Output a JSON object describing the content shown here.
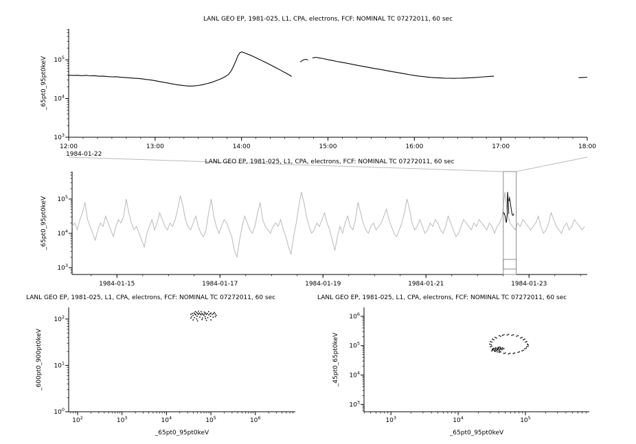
{
  "app": {
    "background": "#ffffff",
    "text_color": "#000000"
  },
  "overview_link": {
    "color": "#b9b9b9",
    "selection_color": "#8c8c8c"
  },
  "chart_data": [
    {
      "id": "zoom-timeseries",
      "type": "line",
      "title": "LANL GEO EP, 1981-025, L1, CPA, electrons, FCF: NOMINAL TC 07272011, 60 sec",
      "ylabel": "_65pt0_95pt0keV",
      "context_date_label": "1984-01-22",
      "x_range_hours": [
        12,
        18
      ],
      "x_tick_hours": [
        12,
        13,
        14,
        15,
        16,
        17,
        18
      ],
      "x_tick_labels": [
        "12:00",
        "13:00",
        "14:00",
        "15:00",
        "16:00",
        "17:00",
        "18:00"
      ],
      "y_scale": "log",
      "y_tick_exponents": [
        3,
        4,
        5
      ],
      "y_range_log10": [
        3,
        5.8
      ],
      "line_color": "#000000",
      "segments": [
        [
          [
            12.0,
            40000
          ],
          [
            12.05,
            39500
          ],
          [
            12.1,
            39800
          ],
          [
            12.15,
            38900
          ],
          [
            12.2,
            39600
          ],
          [
            12.25,
            38500
          ],
          [
            12.3,
            38800
          ],
          [
            12.35,
            37600
          ],
          [
            12.4,
            37900
          ],
          [
            12.45,
            36800
          ],
          [
            12.5,
            36300
          ],
          [
            12.55,
            36600
          ],
          [
            12.6,
            35400
          ],
          [
            12.65,
            35000
          ],
          [
            12.7,
            34200
          ],
          [
            12.75,
            33600
          ],
          [
            12.8,
            33000
          ],
          [
            12.85,
            32200
          ],
          [
            12.9,
            31000
          ],
          [
            12.95,
            30000
          ],
          [
            13.0,
            28800
          ],
          [
            13.05,
            27500
          ],
          [
            13.1,
            26300
          ],
          [
            13.15,
            25000
          ],
          [
            13.2,
            23800
          ],
          [
            13.25,
            22800
          ],
          [
            13.3,
            22000
          ],
          [
            13.35,
            21400
          ],
          [
            13.4,
            21000
          ],
          [
            13.45,
            21200
          ],
          [
            13.5,
            21800
          ],
          [
            13.55,
            22800
          ],
          [
            13.6,
            24200
          ],
          [
            13.65,
            26000
          ],
          [
            13.7,
            28500
          ],
          [
            13.75,
            31500
          ],
          [
            13.8,
            35500
          ],
          [
            13.85,
            42000
          ],
          [
            13.88,
            52000
          ],
          [
            13.91,
            70000
          ],
          [
            13.94,
            100000
          ],
          [
            13.96,
            130000
          ],
          [
            13.98,
            152000
          ],
          [
            14.0,
            160000
          ],
          [
            14.02,
            155000
          ],
          [
            14.05,
            146000
          ],
          [
            14.1,
            132000
          ],
          [
            14.15,
            118000
          ],
          [
            14.2,
            104000
          ],
          [
            14.25,
            92000
          ],
          [
            14.3,
            81000
          ],
          [
            14.35,
            71000
          ],
          [
            14.4,
            62000
          ],
          [
            14.45,
            54000
          ],
          [
            14.5,
            47000
          ],
          [
            14.55,
            41000
          ],
          [
            14.58,
            37000
          ]
        ],
        [
          [
            14.68,
            88000
          ],
          [
            14.71,
            98000
          ],
          [
            14.74,
            103000
          ],
          [
            14.77,
            99000
          ]
        ],
        [
          [
            14.82,
            112000
          ],
          [
            14.86,
            116000
          ],
          [
            14.9,
            112000
          ],
          [
            14.95,
            107000
          ],
          [
            15.0,
            101000
          ],
          [
            15.05,
            96000
          ],
          [
            15.1,
            91000
          ],
          [
            15.15,
            87000
          ],
          [
            15.2,
            83000
          ],
          [
            15.25,
            79000
          ],
          [
            15.3,
            75000
          ],
          [
            15.35,
            71500
          ],
          [
            15.4,
            68000
          ],
          [
            15.45,
            65000
          ],
          [
            15.5,
            62000
          ],
          [
            15.55,
            59000
          ],
          [
            15.6,
            56500
          ],
          [
            15.65,
            54000
          ],
          [
            15.7,
            51500
          ],
          [
            15.75,
            49000
          ],
          [
            15.8,
            47000
          ],
          [
            15.85,
            45000
          ],
          [
            15.9,
            43000
          ],
          [
            15.95,
            41000
          ],
          [
            16.0,
            39500
          ],
          [
            16.05,
            38000
          ],
          [
            16.1,
            36800
          ],
          [
            16.15,
            35800
          ],
          [
            16.2,
            35000
          ],
          [
            16.25,
            34400
          ],
          [
            16.3,
            34000
          ],
          [
            16.35,
            33600
          ],
          [
            16.4,
            33400
          ],
          [
            16.45,
            33200
          ],
          [
            16.5,
            33400
          ],
          [
            16.55,
            33600
          ],
          [
            16.6,
            34000
          ],
          [
            16.65,
            34400
          ],
          [
            16.7,
            35000
          ],
          [
            16.75,
            35600
          ],
          [
            16.8,
            36200
          ],
          [
            16.85,
            36800
          ],
          [
            16.9,
            37400
          ],
          [
            16.92,
            37600
          ]
        ],
        [
          [
            17.9,
            34500
          ],
          [
            17.95,
            35000
          ],
          [
            18.0,
            35500
          ]
        ]
      ]
    },
    {
      "id": "context-timeseries",
      "type": "line",
      "title": "LANL GEO EP, 1981-025, L1, CPA, electrons, FCF: NOMINAL TC 07272011, 60 sec",
      "ylabel": "_65pt0_95pt0keV",
      "x_range_days": [
        14.13,
        24.13
      ],
      "x_tick_days": [
        15,
        17,
        19,
        21,
        23
      ],
      "x_tick_labels": [
        "1984-01-15",
        "1984-01-17",
        "1984-01-19",
        "1984-01-21",
        "1984-01-23"
      ],
      "y_scale": "log",
      "y_tick_exponents": [
        3,
        4,
        5
      ],
      "y_range_log10": [
        2.8,
        5.8
      ],
      "line_color": "#b8b8b8",
      "highlight_color": "#000000",
      "selection_days": [
        22.5,
        22.75
      ],
      "series": {
        "x_start_day": 14.13,
        "x_step_day": 0.05,
        "log10_values": [
          4.2,
          4.3,
          4.1,
          4.4,
          4.6,
          4.9,
          4.4,
          4.2,
          4.0,
          3.8,
          4.1,
          4.3,
          4.2,
          4.5,
          4.3,
          4.1,
          3.9,
          4.2,
          4.4,
          4.3,
          4.5,
          5.0,
          4.6,
          4.3,
          4.1,
          4.2,
          4.0,
          3.8,
          3.6,
          4.0,
          4.2,
          4.4,
          4.1,
          4.3,
          4.6,
          4.4,
          4.2,
          4.1,
          4.3,
          4.2,
          4.4,
          4.7,
          5.1,
          4.8,
          4.4,
          4.2,
          4.1,
          4.3,
          4.5,
          4.2,
          4.0,
          3.9,
          4.1,
          4.6,
          5.0,
          4.5,
          4.2,
          4.0,
          4.2,
          4.4,
          4.3,
          4.1,
          3.9,
          3.5,
          3.3,
          3.8,
          4.2,
          4.5,
          4.3,
          4.1,
          4.0,
          4.2,
          4.6,
          4.9,
          4.4,
          4.2,
          4.1,
          4.0,
          4.2,
          4.3,
          4.2,
          4.4,
          4.1,
          3.9,
          3.6,
          3.4,
          3.9,
          4.3,
          4.8,
          5.2,
          4.9,
          4.5,
          4.2,
          4.0,
          4.1,
          4.3,
          4.2,
          4.4,
          4.6,
          4.3,
          4.1,
          3.8,
          3.5,
          3.9,
          4.2,
          4.0,
          4.3,
          4.5,
          4.2,
          4.1,
          4.4,
          4.9,
          4.6,
          4.3,
          4.1,
          4.0,
          4.2,
          4.3,
          4.1,
          4.2,
          4.3,
          4.5,
          4.7,
          4.4,
          4.2,
          4.0,
          3.9,
          4.1,
          4.3,
          4.6,
          5.0,
          4.7,
          4.3,
          4.1,
          4.2,
          4.4,
          4.2,
          4.0,
          4.1,
          4.3,
          4.2,
          4.4,
          4.3,
          4.1,
          4.0,
          4.2,
          4.5,
          4.3,
          4.1,
          3.9,
          4.0,
          4.2,
          4.4,
          4.3,
          4.2,
          4.1,
          4.3,
          4.2,
          4.4,
          4.3,
          4.2,
          4.1,
          4.3,
          4.2,
          4.0,
          4.2,
          4.3,
          4.5,
          5.2,
          4.6,
          4.3,
          4.2,
          4.1,
          4.3,
          4.2,
          4.4,
          4.3,
          4.2,
          4.1,
          4.2,
          4.3,
          4.5,
          4.2,
          4.0,
          4.1,
          4.3,
          4.6,
          4.4,
          4.2,
          4.1,
          4.0,
          4.2,
          4.3,
          4.1,
          4.2,
          4.4,
          4.3,
          4.2,
          4.1,
          4.2
        ]
      }
    },
    {
      "id": "scatter-600-900-vs-65-95",
      "type": "scatter",
      "title": "LANL GEO EP, 1981-025, L1, CPA, electrons, FCF: NOMINAL TC 07272011, 60 sec",
      "xlabel": "_65pt0_95pt0keV",
      "ylabel": "_600pt0_900pt0keV",
      "x_scale": "log",
      "y_scale": "log",
      "x_tick_exponents": [
        2,
        3,
        4,
        5,
        6
      ],
      "x_range_log10": [
        1.8,
        6.9
      ],
      "y_tick_exponents": [
        0,
        1,
        2
      ],
      "y_range_log10": [
        0,
        2.25
      ],
      "point_color": "#000000",
      "points_log10": [
        [
          4.55,
          2.1
        ],
        [
          4.58,
          2.12
        ],
        [
          4.6,
          2.08
        ],
        [
          4.62,
          2.13
        ],
        [
          4.64,
          2.11
        ],
        [
          4.66,
          2.09
        ],
        [
          4.68,
          2.14
        ],
        [
          4.7,
          2.12
        ],
        [
          4.72,
          2.1
        ],
        [
          4.74,
          2.13
        ],
        [
          4.76,
          2.11
        ],
        [
          4.78,
          2.09
        ],
        [
          4.8,
          2.12
        ],
        [
          4.82,
          2.1
        ],
        [
          4.84,
          2.08
        ],
        [
          4.86,
          2.11
        ],
        [
          4.88,
          2.13
        ],
        [
          4.9,
          2.1
        ],
        [
          4.92,
          2.12
        ],
        [
          4.95,
          2.09
        ],
        [
          4.98,
          2.11
        ],
        [
          5.0,
          2.13
        ],
        [
          5.03,
          2.1
        ],
        [
          5.06,
          2.12
        ],
        [
          5.1,
          2.11
        ],
        [
          4.57,
          2.05
        ],
        [
          4.63,
          2.03
        ],
        [
          4.69,
          2.06
        ],
        [
          4.75,
          2.04
        ],
        [
          4.81,
          2.02
        ],
        [
          4.87,
          2.05
        ],
        [
          4.93,
          2.03
        ],
        [
          4.99,
          2.06
        ],
        [
          5.05,
          2.04
        ],
        [
          4.6,
          1.98
        ],
        [
          4.7,
          1.96
        ],
        [
          4.8,
          1.99
        ],
        [
          4.9,
          1.97
        ],
        [
          5.0,
          1.98
        ],
        [
          4.65,
          2.16
        ],
        [
          4.72,
          2.17
        ],
        [
          4.85,
          2.15
        ],
        [
          4.95,
          2.16
        ],
        [
          5.08,
          2.14
        ],
        [
          4.55,
          2.02
        ],
        [
          5.12,
          2.08
        ],
        [
          4.78,
          2.16
        ],
        [
          4.68,
          2.0
        ],
        [
          4.88,
          2.01
        ],
        [
          5.1,
          2.05
        ]
      ]
    },
    {
      "id": "scatter-45-65-vs-65-95",
      "type": "scatter",
      "title": "LANL GEO EP, 1981-025, L1, CPA, electrons, FCF: NOMINAL TC 07272011, 60 sec",
      "xlabel": "_65pt0_95pt0keV",
      "ylabel": "_45pt0_65pt0keV",
      "x_scale": "log",
      "y_scale": "log",
      "x_tick_exponents": [
        3,
        4,
        5
      ],
      "x_range_log10": [
        2.6,
        5.95
      ],
      "y_tick_exponents": [
        3,
        4,
        5,
        6
      ],
      "y_range_log10": [
        2.75,
        6.3
      ],
      "point_color": "#000000",
      "points_log10": [
        [
          5.03,
          5.05
        ],
        [
          5.02,
          5.14
        ],
        [
          4.99,
          5.22
        ],
        [
          4.95,
          5.28
        ],
        [
          4.89,
          5.34
        ],
        [
          4.82,
          5.37
        ],
        [
          4.75,
          5.38
        ],
        [
          4.68,
          5.37
        ],
        [
          4.61,
          5.34
        ],
        [
          4.55,
          5.28
        ],
        [
          4.51,
          5.22
        ],
        [
          4.48,
          5.14
        ],
        [
          4.47,
          5.05
        ],
        [
          4.48,
          4.96
        ],
        [
          4.51,
          4.89
        ],
        [
          4.55,
          4.82
        ],
        [
          4.61,
          4.77
        ],
        [
          4.68,
          4.73
        ],
        [
          4.75,
          4.72
        ],
        [
          4.82,
          4.73
        ],
        [
          4.89,
          4.77
        ],
        [
          4.95,
          4.82
        ],
        [
          4.99,
          4.89
        ],
        [
          5.02,
          4.96
        ],
        [
          5.04,
          5.03
        ],
        [
          5.0,
          5.12
        ],
        [
          4.97,
          5.2
        ],
        [
          4.93,
          5.26
        ],
        [
          4.87,
          5.32
        ],
        [
          4.8,
          5.35
        ],
        [
          4.73,
          5.36
        ],
        [
          4.66,
          5.35
        ],
        [
          4.63,
          5.32
        ],
        [
          4.57,
          5.26
        ],
        [
          4.53,
          5.2
        ],
        [
          4.5,
          5.12
        ],
        [
          4.49,
          5.03
        ],
        [
          4.5,
          4.98
        ],
        [
          4.53,
          4.91
        ],
        [
          4.57,
          4.84
        ],
        [
          4.63,
          4.79
        ],
        [
          4.7,
          4.75
        ],
        [
          4.77,
          4.74
        ],
        [
          4.84,
          4.75
        ],
        [
          4.91,
          4.79
        ],
        [
          4.97,
          4.84
        ],
        [
          5.01,
          4.91
        ],
        [
          5.04,
          4.98
        ],
        [
          4.5,
          4.82
        ],
        [
          4.52,
          4.85
        ],
        [
          4.54,
          4.83
        ],
        [
          4.55,
          4.87
        ],
        [
          4.56,
          4.9
        ],
        [
          4.57,
          4.84
        ],
        [
          4.58,
          4.88
        ],
        [
          4.59,
          4.86
        ],
        [
          4.6,
          4.9
        ],
        [
          4.61,
          4.84
        ],
        [
          4.62,
          4.88
        ],
        [
          4.63,
          4.92
        ],
        [
          4.55,
          4.8
        ],
        [
          4.58,
          4.79
        ],
        [
          4.61,
          4.8
        ],
        [
          4.64,
          4.86
        ],
        [
          4.53,
          4.89
        ],
        [
          4.56,
          4.93
        ],
        [
          4.6,
          4.94
        ],
        [
          4.64,
          4.9
        ],
        [
          4.66,
          4.88
        ],
        [
          4.51,
          4.86
        ],
        [
          4.59,
          4.92
        ],
        [
          4.62,
          4.95
        ],
        [
          4.66,
          4.93
        ],
        [
          4.68,
          4.9
        ]
      ]
    }
  ]
}
